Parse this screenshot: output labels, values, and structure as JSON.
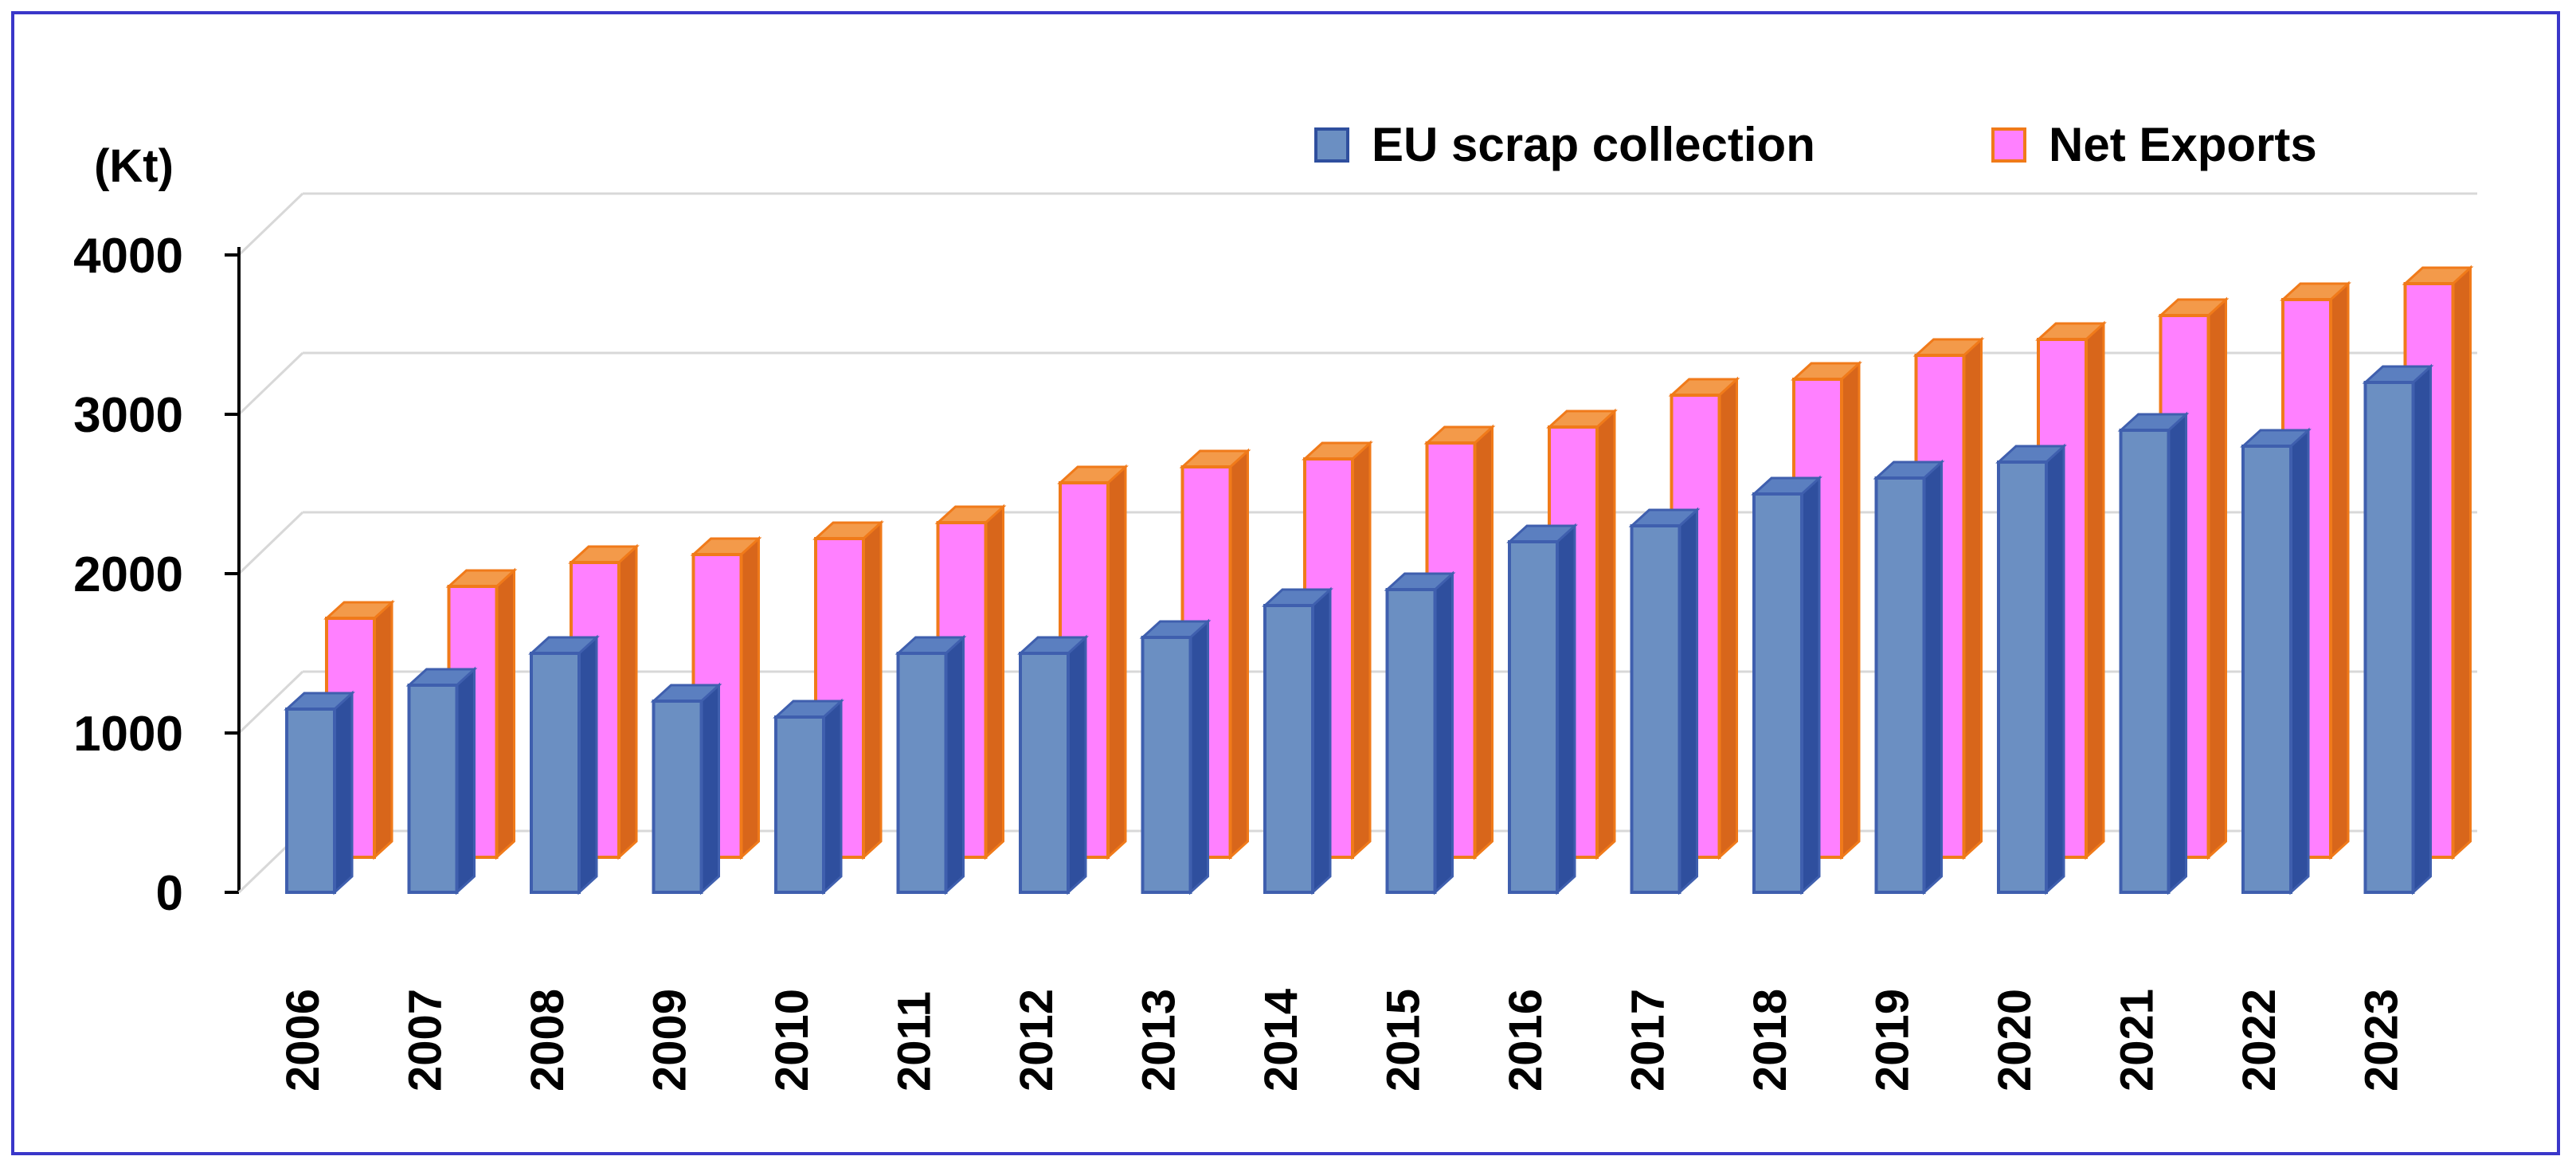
{
  "chart_data": {
    "type": "bar",
    "title": "",
    "xlabel": "",
    "ylabel": "(Kt)",
    "ylim": [
      0,
      4000
    ],
    "yticks": [
      "0",
      "1000",
      "2000",
      "3000",
      "4000"
    ],
    "categories": [
      "2006",
      "2007",
      "2008",
      "2009",
      "2010",
      "2011",
      "2012",
      "2013",
      "2014",
      "2015",
      "2016",
      "2017",
      "2018",
      "2019",
      "2020",
      "2021",
      "2022",
      "2023"
    ],
    "series": [
      {
        "name": "EU scrap collection",
        "color": "#6b8fc2",
        "values": [
          1150,
          1300,
          1500,
          1200,
          1100,
          1500,
          1500,
          1600,
          1800,
          1900,
          2200,
          2300,
          2500,
          2600,
          2700,
          2900,
          2800,
          3200
        ]
      },
      {
        "name": "Net Exports",
        "color": "#ff80ff",
        "values": [
          1500,
          1700,
          1850,
          1900,
          2000,
          2100,
          2350,
          2450,
          2500,
          2600,
          2700,
          2900,
          3000,
          3150,
          3250,
          3400,
          3500,
          3600
        ]
      }
    ],
    "legend": "top-right",
    "grid": true,
    "chart_style": "3d-clustered-column"
  }
}
